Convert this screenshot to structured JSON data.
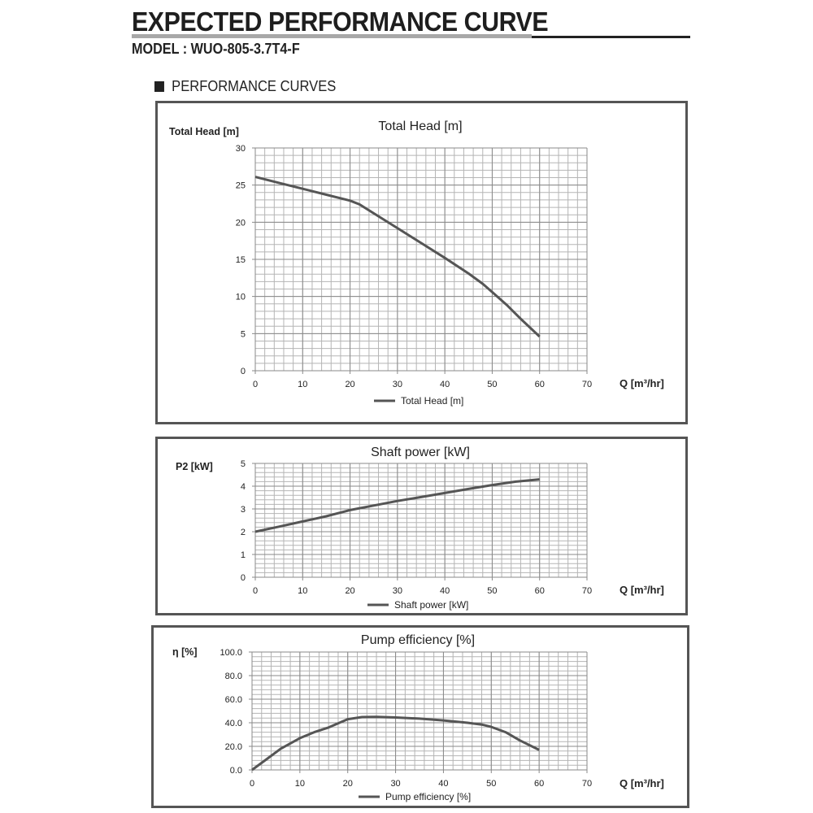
{
  "header": {
    "title": "EXPECTED PERFORMANCE CURVE",
    "model": "MODEL : WUO-805-3.7T4-F",
    "section": "PERFORMANCE CURVES"
  },
  "colors": {
    "line": "#555555",
    "grid": "#b5b5b5",
    "border": "#555555"
  },
  "chart_data": [
    {
      "type": "line",
      "title": "Total Head [m]",
      "ylabel": "Total Head [m]",
      "xlabel": "Q [m³/hr]",
      "legend": "Total Head [m]",
      "legend_placement": "bottom",
      "grid": true,
      "xlim": [
        0,
        70
      ],
      "ylim": [
        0,
        30
      ],
      "xticks": [
        "0",
        "10",
        "20",
        "30",
        "40",
        "50",
        "60",
        "70"
      ],
      "yticks": [
        "0",
        "5",
        "10",
        "15",
        "20",
        "25",
        "30"
      ],
      "x": [
        0,
        5,
        10,
        15,
        20,
        22,
        25,
        30,
        35,
        40,
        45,
        48,
        50,
        53,
        56,
        60
      ],
      "y": [
        26.1,
        25.3,
        24.5,
        23.7,
        22.9,
        22.4,
        21.2,
        19.2,
        17.2,
        15.2,
        13.1,
        11.7,
        10.6,
        8.9,
        7.0,
        4.6
      ]
    },
    {
      "type": "line",
      "title": "Shaft power [kW]",
      "ylabel": "P2 [kW]",
      "xlabel": "Q [m³/hr]",
      "legend": "Shaft power [kW]",
      "legend_placement": "bottom",
      "grid": true,
      "xlim": [
        0,
        70
      ],
      "ylim": [
        0,
        5
      ],
      "xticks": [
        "0",
        "10",
        "20",
        "30",
        "40",
        "50",
        "60",
        "70"
      ],
      "yticks": [
        "0",
        "1",
        "2",
        "3",
        "4",
        "5"
      ],
      "x": [
        0,
        5,
        10,
        15,
        20,
        25,
        30,
        35,
        40,
        45,
        50,
        55,
        60
      ],
      "y": [
        2.0,
        2.22,
        2.45,
        2.68,
        2.95,
        3.15,
        3.35,
        3.52,
        3.7,
        3.88,
        4.05,
        4.2,
        4.3
      ]
    },
    {
      "type": "line",
      "title": "Pump efficiency [%]",
      "ylabel": "η [%]",
      "xlabel": "Q [m³/hr]",
      "legend": "Pump efficiency [%]",
      "legend_placement": "bottom",
      "grid": true,
      "xlim": [
        0,
        70
      ],
      "ylim": [
        0,
        100
      ],
      "xticks": [
        "0",
        "10",
        "20",
        "30",
        "40",
        "50",
        "60",
        "70"
      ],
      "yticks": [
        "0.0",
        "20.0",
        "40.0",
        "60.0",
        "80.0",
        "100.0"
      ],
      "x": [
        0,
        3,
        6,
        10,
        13,
        16,
        20,
        23,
        26,
        30,
        35,
        40,
        45,
        48,
        50,
        53,
        56,
        60
      ],
      "y": [
        0,
        9,
        18,
        27,
        32,
        36,
        43,
        44.8,
        45,
        44.5,
        43.5,
        42,
        40,
        38.5,
        36.5,
        32,
        25,
        17
      ]
    }
  ]
}
